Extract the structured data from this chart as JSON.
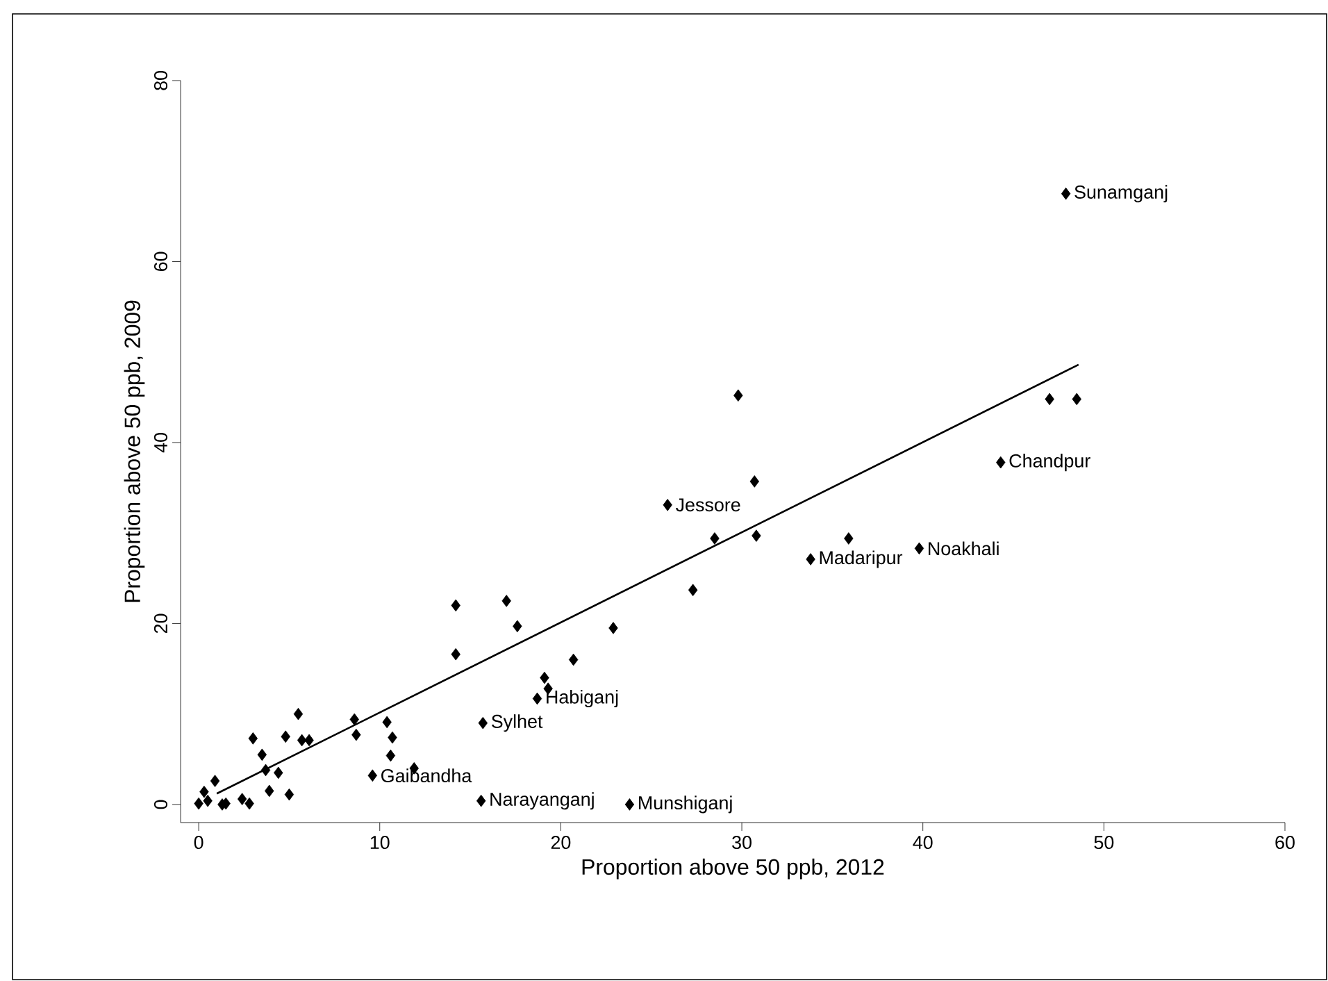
{
  "chart_data": {
    "type": "scatter",
    "xlabel": "Proportion above 50 ppb, 2012",
    "ylabel": "Proportion above 50 ppb, 2009",
    "xlim": [
      -1,
      60
    ],
    "ylim": [
      -2,
      80
    ],
    "xticks": [
      0,
      10,
      20,
      30,
      40,
      50,
      60
    ],
    "yticks": [
      0,
      20,
      40,
      60,
      80
    ],
    "grid": false,
    "legend": false,
    "marker": "diamond",
    "series": [
      {
        "color": "#000000",
        "x": [
          47.9,
          44.3,
          39.8,
          33.8,
          25.9,
          18.7,
          15.7,
          9.6,
          15.6,
          23.8,
          47.0,
          48.5,
          29.8,
          30.7,
          28.5,
          30.8,
          35.9,
          27.3,
          22.9,
          20.7,
          19.1,
          19.3,
          14.2,
          17.0,
          17.6,
          14.2,
          8.6,
          8.7,
          10.4,
          10.7,
          10.6,
          11.9,
          5.5,
          3.0,
          4.8,
          5.7,
          6.1,
          3.5,
          3.7,
          4.4,
          3.9,
          5.0,
          0.9,
          2.4,
          2.8,
          0.3,
          0.0,
          0.5,
          1.3,
          1.5
        ],
        "values": [
          67.5,
          37.8,
          28.3,
          27.1,
          33.1,
          11.7,
          9.0,
          3.2,
          0.4,
          0.0,
          44.8,
          44.8,
          45.2,
          35.7,
          29.4,
          29.7,
          29.4,
          23.7,
          19.5,
          16.0,
          14.0,
          12.8,
          22.0,
          22.5,
          19.7,
          16.6,
          9.4,
          7.7,
          9.1,
          7.4,
          5.4,
          4.0,
          10.0,
          7.3,
          7.5,
          7.1,
          7.1,
          5.5,
          3.8,
          3.5,
          1.5,
          1.1,
          2.6,
          0.6,
          0.1,
          1.4,
          0.1,
          0.4,
          0.0,
          0.1
        ]
      },
      {
        "type": "line",
        "color": "#000000",
        "marker": "none",
        "x": [
          1.0,
          48.6
        ],
        "values": [
          1.2,
          48.6
        ]
      }
    ],
    "annotations": [
      {
        "text": "Sunamganj",
        "x": 47.9,
        "y": 67.5
      },
      {
        "text": "Chandpur",
        "x": 44.3,
        "y": 37.8
      },
      {
        "text": "Noakhali",
        "x": 39.8,
        "y": 28.3
      },
      {
        "text": "Madaripur",
        "x": 33.8,
        "y": 27.1
      },
      {
        "text": "Jessore",
        "x": 25.9,
        "y": 33.1
      },
      {
        "text": "Habiganj",
        "x": 18.7,
        "y": 11.7
      },
      {
        "text": "Sylhet",
        "x": 15.7,
        "y": 9.0
      },
      {
        "text": "Gaibandha",
        "x": 9.6,
        "y": 3.2
      },
      {
        "text": "Narayanganj",
        "x": 15.6,
        "y": 0.4
      },
      {
        "text": "Munshiganj",
        "x": 23.8,
        "y": 0.0
      }
    ]
  }
}
